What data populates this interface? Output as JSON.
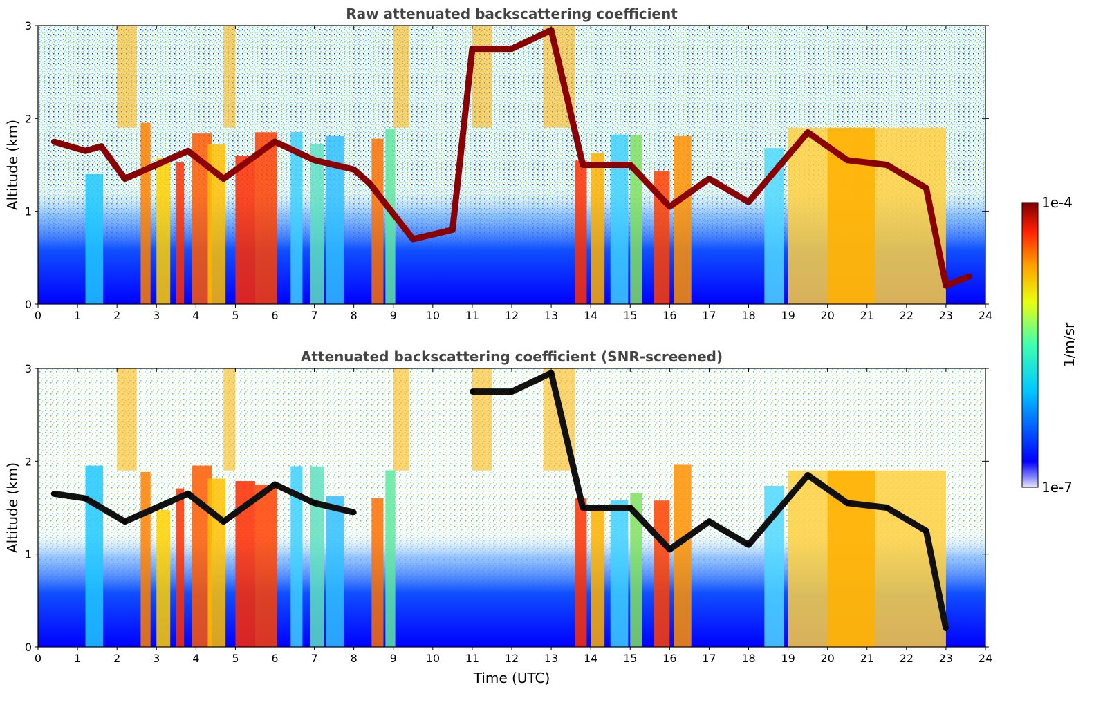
{
  "chart_data": [
    {
      "type": "heatmap",
      "title": "Raw attenuated backscattering coefficient",
      "ylabel": "Altitude (km)",
      "xlabel": "",
      "xlim": [
        0,
        24
      ],
      "ylim": [
        0,
        3
      ],
      "x_ticks": [
        "0",
        "1",
        "2",
        "3",
        "4",
        "5",
        "6",
        "7",
        "8",
        "9",
        "10",
        "11",
        "12",
        "13",
        "14",
        "15",
        "16",
        "17",
        "18",
        "19",
        "20",
        "21",
        "22",
        "23",
        "24"
      ],
      "y_ticks": [
        "0",
        "1",
        "2",
        "3"
      ],
      "colormap": "jet",
      "cloud_base_km": [
        {
          "t": 0.4,
          "z": 1.75
        },
        {
          "t": 1.2,
          "z": 1.65
        },
        {
          "t": 1.6,
          "z": 1.7
        },
        {
          "t": 2.2,
          "z": 1.35
        },
        {
          "t": 3.8,
          "z": 1.65
        },
        {
          "t": 4.7,
          "z": 1.35
        },
        {
          "t": 6.0,
          "z": 1.75
        },
        {
          "t": 7.0,
          "z": 1.55
        },
        {
          "t": 8.0,
          "z": 1.45
        },
        {
          "t": 8.4,
          "z": 1.3
        },
        {
          "t": 9.5,
          "z": 0.7
        },
        {
          "t": 10.5,
          "z": 0.8
        },
        {
          "t": 11.0,
          "z": 2.75
        },
        {
          "t": 12.0,
          "z": 2.75
        },
        {
          "t": 13.0,
          "z": 2.95
        },
        {
          "t": 13.8,
          "z": 1.5
        },
        {
          "t": 15.0,
          "z": 1.5
        },
        {
          "t": 16.0,
          "z": 1.05
        },
        {
          "t": 17.0,
          "z": 1.35
        },
        {
          "t": 18.0,
          "z": 1.1
        },
        {
          "t": 19.5,
          "z": 1.85
        },
        {
          "t": 20.5,
          "z": 1.55
        },
        {
          "t": 21.5,
          "z": 1.5
        },
        {
          "t": 22.5,
          "z": 1.25
        },
        {
          "t": 23.0,
          "z": 0.2
        },
        {
          "t": 23.6,
          "z": 0.3
        }
      ]
    },
    {
      "type": "heatmap",
      "title": "Attenuated backscattering coefficient (SNR-screened)",
      "ylabel": "Altitude (km)",
      "xlabel": "Time (UTC)",
      "xlim": [
        0,
        24
      ],
      "ylim": [
        0,
        3
      ],
      "x_ticks": [
        "0",
        "1",
        "2",
        "3",
        "4",
        "5",
        "6",
        "7",
        "8",
        "9",
        "10",
        "11",
        "12",
        "13",
        "14",
        "15",
        "16",
        "17",
        "18",
        "19",
        "20",
        "21",
        "22",
        "23",
        "24"
      ],
      "y_ticks": [
        "0",
        "1",
        "2",
        "3"
      ],
      "colormap": "jet",
      "cloud_base_km": [
        {
          "t": 0.4,
          "z": 1.65
        },
        {
          "t": 1.2,
          "z": 1.6
        },
        {
          "t": 2.2,
          "z": 1.35
        },
        {
          "t": 3.8,
          "z": 1.65
        },
        {
          "t": 4.7,
          "z": 1.35
        },
        {
          "t": 6.0,
          "z": 1.75
        },
        {
          "t": 7.0,
          "z": 1.55
        },
        {
          "t": 8.0,
          "z": 1.45
        },
        {
          "t": 11.0,
          "z": 2.75
        },
        {
          "t": 12.0,
          "z": 2.75
        },
        {
          "t": 13.0,
          "z": 2.95
        },
        {
          "t": 13.8,
          "z": 1.5
        },
        {
          "t": 15.0,
          "z": 1.5
        },
        {
          "t": 16.0,
          "z": 1.05
        },
        {
          "t": 17.0,
          "z": 1.35
        },
        {
          "t": 18.0,
          "z": 1.1
        },
        {
          "t": 19.5,
          "z": 1.85
        },
        {
          "t": 20.5,
          "z": 1.55
        },
        {
          "t": 21.5,
          "z": 1.5
        },
        {
          "t": 22.5,
          "z": 1.25
        },
        {
          "t": 23.0,
          "z": 0.2
        }
      ]
    }
  ],
  "colorbar": {
    "label": "1/m/sr",
    "min_label": "1e-7",
    "max_label": "1e-4",
    "colormap": "jet"
  }
}
